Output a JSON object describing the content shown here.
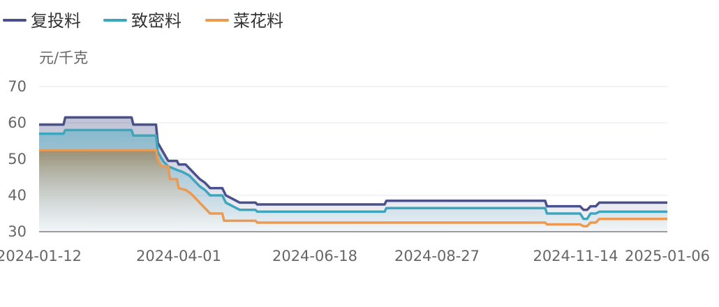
{
  "chart_data": {
    "type": "area",
    "unit_label": "元/千克",
    "ylim": [
      30,
      70
    ],
    "yticks": [
      30,
      40,
      50,
      60,
      70
    ],
    "x_range": [
      "2024-01-12",
      "2025-01-06"
    ],
    "x_tick_labels": [
      "2024-01-12",
      "2024-04-01",
      "2024-06-18",
      "2024-08-27",
      "2024-11-14",
      "2025-01-06"
    ],
    "grid": true,
    "legend_position": "top-left",
    "series": [
      {
        "name": "复投料",
        "color": "#4a5089",
        "points": [
          [
            "2024-01-12",
            59.5
          ],
          [
            "2024-01-26",
            59.5
          ],
          [
            "2024-01-27",
            61.5
          ],
          [
            "2024-03-05",
            61.5
          ],
          [
            "2024-03-06",
            59.5
          ],
          [
            "2024-03-19",
            59.5
          ],
          [
            "2024-03-20",
            54.5
          ],
          [
            "2024-03-23",
            52.0
          ],
          [
            "2024-03-26",
            49.5
          ],
          [
            "2024-03-31",
            49.5
          ],
          [
            "2024-04-01",
            48.5
          ],
          [
            "2024-04-05",
            48.5
          ],
          [
            "2024-04-07",
            47.5
          ],
          [
            "2024-04-10",
            46.0
          ],
          [
            "2024-04-13",
            44.5
          ],
          [
            "2024-04-16",
            43.5
          ],
          [
            "2024-04-19",
            42.0
          ],
          [
            "2024-04-26",
            42.0
          ],
          [
            "2024-04-28",
            40.0
          ],
          [
            "2024-05-02",
            39.0
          ],
          [
            "2024-05-06",
            38.0
          ],
          [
            "2024-05-15",
            38.0
          ],
          [
            "2024-05-16",
            37.5
          ],
          [
            "2024-07-28",
            37.5
          ],
          [
            "2024-07-29",
            38.5
          ],
          [
            "2024-10-28",
            38.5
          ],
          [
            "2024-10-29",
            37.0
          ],
          [
            "2024-11-17",
            37.0
          ],
          [
            "2024-11-19",
            36.0
          ],
          [
            "2024-11-21",
            36.0
          ],
          [
            "2024-11-23",
            37.0
          ],
          [
            "2024-11-26",
            37.0
          ],
          [
            "2024-11-28",
            38.0
          ],
          [
            "2025-01-06",
            38.0
          ]
        ]
      },
      {
        "name": "致密料",
        "color": "#3ea6bc",
        "points": [
          [
            "2024-01-12",
            57.0
          ],
          [
            "2024-01-26",
            57.0
          ],
          [
            "2024-01-27",
            58.0
          ],
          [
            "2024-03-05",
            58.0
          ],
          [
            "2024-03-06",
            56.5
          ],
          [
            "2024-03-19",
            56.5
          ],
          [
            "2024-03-20",
            52.0
          ],
          [
            "2024-03-23",
            49.5
          ],
          [
            "2024-03-26",
            48.0
          ],
          [
            "2024-03-31",
            47.0
          ],
          [
            "2024-04-03",
            46.5
          ],
          [
            "2024-04-07",
            45.5
          ],
          [
            "2024-04-10",
            44.0
          ],
          [
            "2024-04-13",
            42.5
          ],
          [
            "2024-04-16",
            41.5
          ],
          [
            "2024-04-19",
            40.0
          ],
          [
            "2024-04-26",
            40.0
          ],
          [
            "2024-04-28",
            38.0
          ],
          [
            "2024-05-02",
            37.0
          ],
          [
            "2024-05-06",
            36.0
          ],
          [
            "2024-05-15",
            36.0
          ],
          [
            "2024-05-16",
            35.5
          ],
          [
            "2024-07-28",
            35.5
          ],
          [
            "2024-07-29",
            36.5
          ],
          [
            "2024-10-28",
            36.5
          ],
          [
            "2024-10-29",
            35.0
          ],
          [
            "2024-11-17",
            35.0
          ],
          [
            "2024-11-19",
            33.5
          ],
          [
            "2024-11-21",
            33.5
          ],
          [
            "2024-11-23",
            35.0
          ],
          [
            "2024-11-26",
            35.0
          ],
          [
            "2024-11-28",
            35.5
          ],
          [
            "2025-01-06",
            35.5
          ]
        ]
      },
      {
        "name": "菜花料",
        "color": "#ec9a52",
        "points": [
          [
            "2024-01-12",
            52.5
          ],
          [
            "2024-03-19",
            52.5
          ],
          [
            "2024-03-20",
            50.0
          ],
          [
            "2024-03-22",
            48.0
          ],
          [
            "2024-03-26",
            48.0
          ],
          [
            "2024-03-27",
            44.5
          ],
          [
            "2024-03-31",
            44.5
          ],
          [
            "2024-04-01",
            42.0
          ],
          [
            "2024-04-05",
            41.5
          ],
          [
            "2024-04-08",
            40.5
          ],
          [
            "2024-04-11",
            39.0
          ],
          [
            "2024-04-15",
            37.0
          ],
          [
            "2024-04-19",
            35.0
          ],
          [
            "2024-04-26",
            35.0
          ],
          [
            "2024-04-27",
            33.0
          ],
          [
            "2024-05-15",
            33.0
          ],
          [
            "2024-05-16",
            32.5
          ],
          [
            "2024-10-28",
            32.5
          ],
          [
            "2024-10-29",
            32.0
          ],
          [
            "2024-11-17",
            32.0
          ],
          [
            "2024-11-19",
            31.5
          ],
          [
            "2024-11-21",
            31.5
          ],
          [
            "2024-11-23",
            32.5
          ],
          [
            "2024-11-26",
            32.5
          ],
          [
            "2024-11-28",
            33.5
          ],
          [
            "2025-01-06",
            33.5
          ]
        ]
      }
    ]
  }
}
